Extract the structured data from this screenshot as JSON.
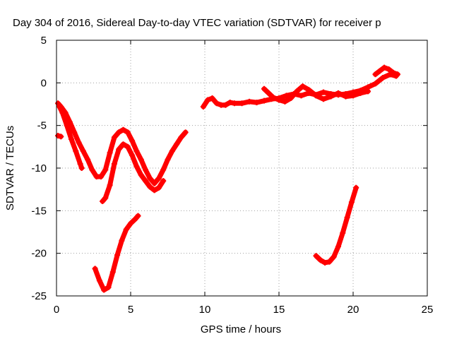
{
  "chart_data": {
    "type": "scatter",
    "title": "Day 304 of 2016, Sidereal Day-to-day VTEC variation (SDTVAR) for receiver p",
    "xlabel": "GPS time / hours",
    "ylabel": "SDTVAR / TECUs",
    "xlim": [
      0,
      25
    ],
    "ylim": [
      -25,
      5
    ],
    "xticks": [
      "0",
      "5",
      "10",
      "15",
      "20",
      "25"
    ],
    "yticks": [
      "5",
      "0",
      "-5",
      "-10",
      "-15",
      "-20",
      "-25"
    ],
    "grid": true,
    "color": "#ff0000",
    "series": [
      {
        "x": [
          0.1,
          0.3,
          0.6,
          0.9,
          1.2,
          1.5,
          1.8,
          2.1,
          2.4,
          2.7,
          3.0,
          3.3,
          3.6,
          3.9,
          4.2,
          4.5,
          4.8,
          5.1,
          5.4,
          5.7,
          6.0,
          6.3,
          6.6,
          6.9,
          7.2,
          7.5,
          7.8,
          8.1,
          8.4,
          8.7
        ],
        "y": [
          -2.4,
          -2.8,
          -3.5,
          -4.6,
          -5.8,
          -7.0,
          -8.0,
          -9.0,
          -10.2,
          -11.0,
          -11.0,
          -10.2,
          -8.2,
          -6.4,
          -5.8,
          -5.5,
          -5.8,
          -6.8,
          -8.0,
          -9.0,
          -10.2,
          -11.2,
          -11.8,
          -11.2,
          -10.2,
          -9.0,
          -8.0,
          -7.2,
          -6.4,
          -5.8
        ]
      },
      {
        "x": [
          0.2,
          0.4,
          0.7,
          1.0,
          1.3,
          1.6,
          1.7
        ],
        "y": [
          -2.8,
          -3.5,
          -5.0,
          -6.6,
          -8.0,
          -9.5,
          -10.0
        ]
      },
      {
        "x": [
          3.1,
          3.3,
          3.6,
          3.9,
          4.2,
          4.5,
          4.8,
          5.1,
          5.4,
          5.7,
          6.0,
          6.3,
          6.6,
          6.9,
          7.2
        ],
        "y": [
          -13.9,
          -13.5,
          -12.0,
          -9.5,
          -7.8,
          -7.2,
          -7.5,
          -8.5,
          -9.8,
          -10.8,
          -11.5,
          -12.2,
          -12.6,
          -12.3,
          -11.5
        ]
      },
      {
        "x": [
          0.1,
          0.3
        ],
        "y": [
          -6.2,
          -6.3
        ]
      },
      {
        "x": [
          2.6,
          2.9,
          3.2,
          3.5,
          3.8,
          4.1,
          4.4,
          4.7,
          5.0,
          5.3,
          5.5
        ],
        "y": [
          -21.8,
          -23.2,
          -24.3,
          -24.0,
          -22.2,
          -20.2,
          -18.5,
          -17.2,
          -16.5,
          -16.0,
          -15.6
        ]
      },
      {
        "x": [
          17.5,
          17.8,
          18.1,
          18.4,
          18.7,
          19.0,
          19.3,
          19.6,
          19.9,
          20.2
        ],
        "y": [
          -20.3,
          -20.8,
          -21.1,
          -21.0,
          -20.4,
          -19.2,
          -17.6,
          -15.8,
          -14.0,
          -12.3
        ]
      },
      {
        "x": [
          9.9,
          10.2,
          10.5,
          10.8,
          11.1,
          11.4,
          11.7,
          12.0,
          12.5,
          13.0,
          13.5,
          14.0,
          14.5,
          15.0,
          15.5,
          16.0,
          16.5,
          17.0,
          17.5,
          18.0,
          18.5,
          19.0,
          19.5,
          20.0,
          20.5,
          21.0,
          21.5,
          22.0,
          22.5,
          22.9
        ],
        "y": [
          -2.8,
          -2.0,
          -1.8,
          -2.4,
          -2.6,
          -2.6,
          -2.3,
          -2.4,
          -2.4,
          -2.2,
          -2.3,
          -2.1,
          -1.9,
          -1.8,
          -1.5,
          -1.3,
          -1.5,
          -1.2,
          -1.4,
          -1.1,
          -1.3,
          -1.4,
          -1.3,
          -1.1,
          -0.9,
          -0.5,
          -0.1,
          0.6,
          1.0,
          0.8
        ]
      },
      {
        "x": [
          14.0,
          14.3,
          14.6,
          15.0,
          15.4,
          15.8,
          16.2,
          16.6,
          17.0,
          17.5,
          18.0,
          18.5,
          19.0,
          19.5,
          20.0,
          20.5,
          21.0
        ],
        "y": [
          -0.7,
          -1.2,
          -1.7,
          -2.0,
          -2.2,
          -1.8,
          -1.0,
          -0.4,
          -0.8,
          -1.5,
          -1.9,
          -1.6,
          -1.2,
          -1.6,
          -1.5,
          -1.2,
          -1.0
        ]
      },
      {
        "x": [
          21.5,
          21.8,
          22.1,
          22.4,
          22.7,
          23.0
        ],
        "y": [
          1.0,
          1.4,
          1.8,
          1.6,
          1.2,
          1.0
        ]
      }
    ]
  }
}
